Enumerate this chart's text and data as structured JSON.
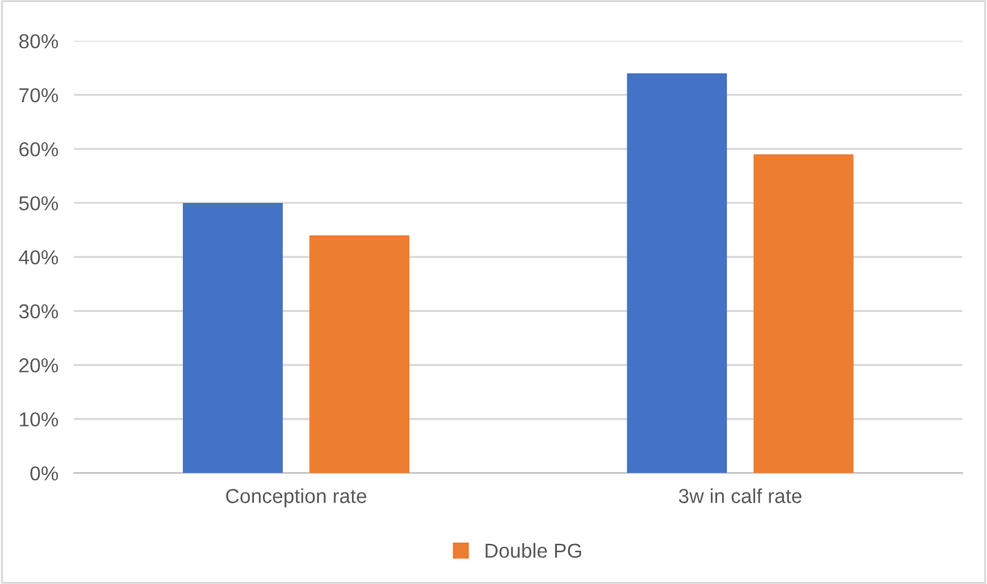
{
  "chart_data": {
    "type": "bar",
    "categories": [
      "Conception rate",
      "3w in calf rate"
    ],
    "series": [
      {
        "color": "#4472c4",
        "values": [
          50,
          74
        ]
      },
      {
        "name": "Double PG",
        "color": "#ed7d31",
        "values": [
          44,
          59
        ]
      }
    ],
    "ylim": [
      0,
      80
    ],
    "yticks": [
      {
        "value": 0,
        "label": "0%"
      },
      {
        "value": 10,
        "label": "10%"
      },
      {
        "value": 20,
        "label": "20%"
      },
      {
        "value": 30,
        "label": "30%"
      },
      {
        "value": 40,
        "label": "40%"
      },
      {
        "value": 50,
        "label": "50%"
      },
      {
        "value": 60,
        "label": "60%"
      },
      {
        "value": 70,
        "label": "70%"
      },
      {
        "value": 80,
        "label": "80%"
      }
    ],
    "grid": "y",
    "legend": "bottom"
  }
}
